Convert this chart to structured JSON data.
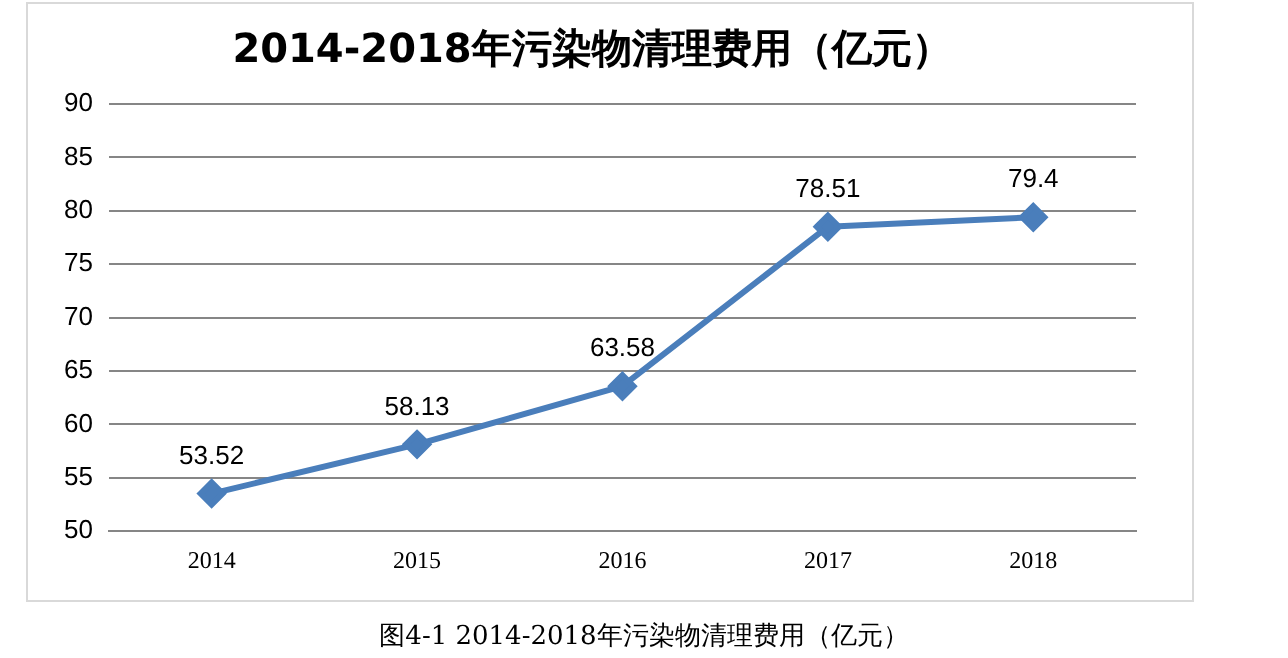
{
  "chart_data": {
    "type": "line",
    "title": "2014-2018年污染物清理费用（亿元）",
    "categories": [
      "2014",
      "2015",
      "2016",
      "2017",
      "2018"
    ],
    "series": [
      {
        "color": "#4a7ebb",
        "values": [
          53.52,
          58.13,
          63.58,
          78.51,
          79.4
        ]
      }
    ],
    "ylim": [
      50,
      90
    ],
    "yticks": [
      50,
      55,
      60,
      65,
      70,
      75,
      80,
      85,
      90
    ],
    "grid": "y",
    "legend": false,
    "marker": "diamond",
    "line_style": "solid",
    "data_labels": true,
    "annotations": [
      "图4-1 2014-2018年污染物清理费用（亿元）"
    ]
  }
}
